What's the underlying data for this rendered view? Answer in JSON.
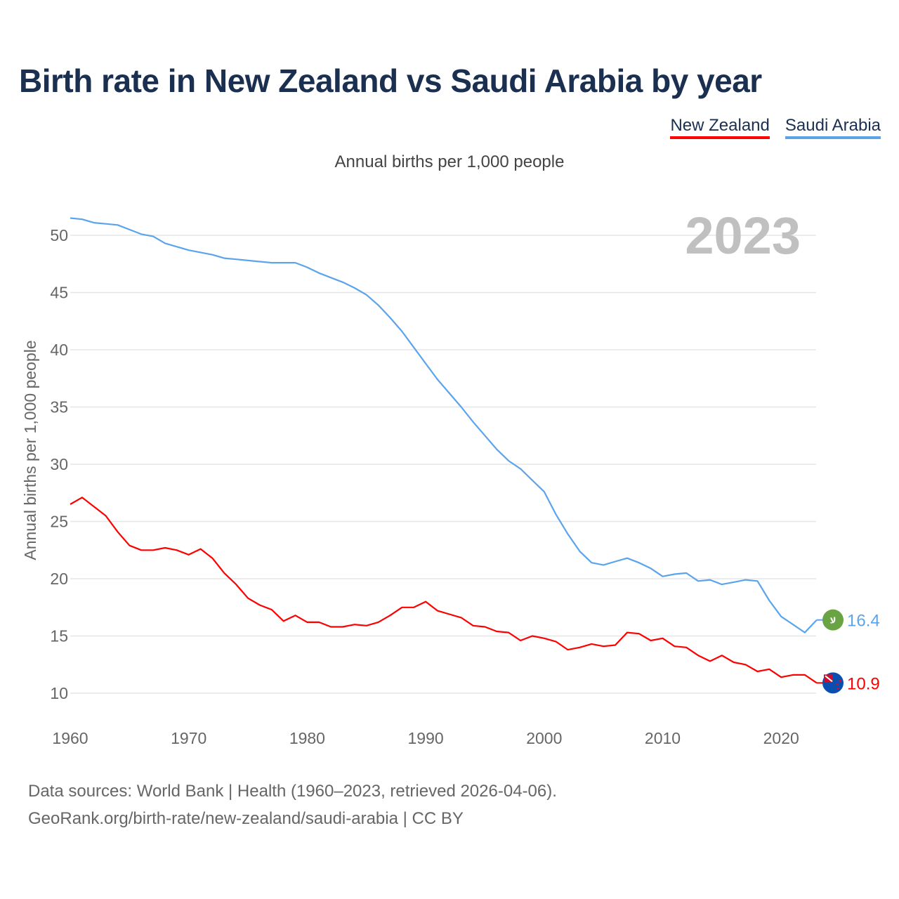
{
  "chart_data": {
    "type": "line",
    "title": "Birth rate in New Zealand vs Saudi Arabia by year",
    "subtitle": "Annual births per 1,000 people",
    "ylabel": "Annual births per 1,000 people",
    "xlabel": "",
    "year_label": "2023",
    "xlim": [
      1960,
      2023
    ],
    "ylim": [
      10,
      50
    ],
    "xticks": [
      1960,
      1970,
      1980,
      1990,
      2000,
      2010,
      2020
    ],
    "yticks": [
      10,
      15,
      20,
      25,
      30,
      35,
      40,
      45,
      50
    ],
    "grid": true,
    "legend_position": "top-right",
    "x": [
      1960,
      1961,
      1962,
      1963,
      1964,
      1965,
      1966,
      1967,
      1968,
      1969,
      1970,
      1971,
      1972,
      1973,
      1974,
      1975,
      1976,
      1977,
      1978,
      1979,
      1980,
      1981,
      1982,
      1983,
      1984,
      1985,
      1986,
      1987,
      1988,
      1989,
      1990,
      1991,
      1992,
      1993,
      1994,
      1995,
      1996,
      1997,
      1998,
      1999,
      2000,
      2001,
      2002,
      2003,
      2004,
      2005,
      2006,
      2007,
      2008,
      2009,
      2010,
      2011,
      2012,
      2013,
      2014,
      2015,
      2016,
      2017,
      2018,
      2019,
      2020,
      2021,
      2022,
      2023
    ],
    "series": [
      {
        "name": "New Zealand",
        "color": "#ff0000",
        "end_label": "10.9",
        "flag": "new-zealand-flag-icon",
        "values": [
          26.5,
          27.1,
          26.3,
          25.5,
          24.1,
          22.9,
          22.5,
          22.5,
          22.7,
          22.5,
          22.1,
          22.6,
          21.8,
          20.5,
          19.5,
          18.3,
          17.7,
          17.3,
          16.3,
          16.8,
          16.2,
          16.2,
          15.8,
          15.8,
          16.0,
          15.9,
          16.2,
          16.8,
          17.5,
          17.5,
          18.0,
          17.2,
          16.9,
          16.6,
          15.9,
          15.8,
          15.4,
          15.3,
          14.6,
          15.0,
          14.8,
          14.5,
          13.8,
          14.0,
          14.3,
          14.1,
          14.2,
          15.3,
          15.2,
          14.6,
          14.8,
          14.1,
          14.0,
          13.3,
          12.8,
          13.3,
          12.7,
          12.5,
          11.9,
          12.1,
          11.4,
          11.6,
          11.6,
          10.9
        ]
      },
      {
        "name": "Saudi Arabia",
        "color": "#5ba4ec",
        "end_label": "16.4",
        "flag": "saudi-arabia-flag-icon",
        "values": [
          51.5,
          51.4,
          51.1,
          51.0,
          50.9,
          50.5,
          50.1,
          49.9,
          49.3,
          49.0,
          48.7,
          48.5,
          48.3,
          48.0,
          47.9,
          47.8,
          47.7,
          47.6,
          47.6,
          47.6,
          47.2,
          46.7,
          46.3,
          45.9,
          45.4,
          44.8,
          43.9,
          42.8,
          41.6,
          40.2,
          38.8,
          37.4,
          36.2,
          35.0,
          33.7,
          32.5,
          31.3,
          30.3,
          29.6,
          28.6,
          27.6,
          25.6,
          23.9,
          22.4,
          21.4,
          21.2,
          21.5,
          21.8,
          21.4,
          20.9,
          20.2,
          20.4,
          20.5,
          19.8,
          19.9,
          19.5,
          19.7,
          19.9,
          19.8,
          18.1,
          16.7,
          16.0,
          15.3,
          16.4
        ]
      }
    ]
  },
  "footer": {
    "line1": "Data sources: World Bank | Health (1960–2023, retrieved 2026-04-06).",
    "line2": "GeoRank.org/birth-rate/new-zealand/saudi-arabia | CC BY"
  }
}
